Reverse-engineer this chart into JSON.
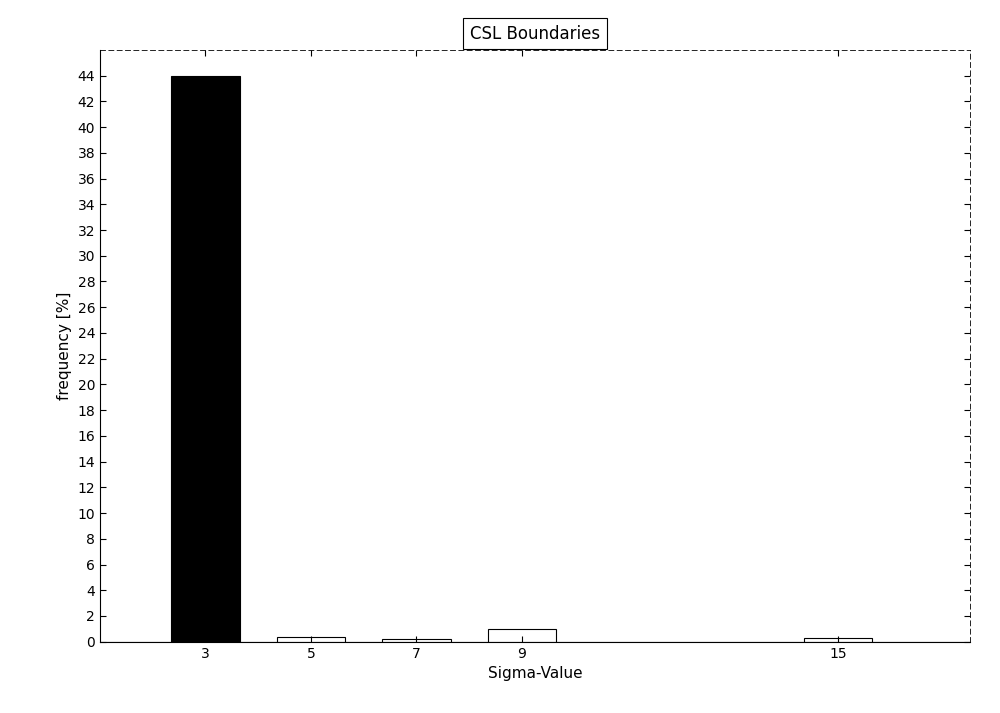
{
  "title": "CSL Boundaries",
  "xlabel": "Sigma-Value",
  "ylabel": "frequency [%]",
  "categories": [
    3,
    5,
    7,
    9,
    15
  ],
  "values": [
    44.0,
    0.4,
    0.2,
    1.0,
    0.3
  ],
  "bar_color_first": "#000000",
  "bar_color_rest": "#ffffff",
  "bar_edge_color": "#000000",
  "ylim": [
    0,
    46
  ],
  "ytick_step": 2,
  "xlim": [
    1.0,
    17.5
  ],
  "background_color": "#ffffff",
  "plot_bg_color": "#ffffff",
  "bar_width": 1.3,
  "figsize": [
    10.0,
    7.13
  ],
  "dpi": 100,
  "title_fontsize": 12,
  "axis_fontsize": 11,
  "tick_fontsize": 10
}
